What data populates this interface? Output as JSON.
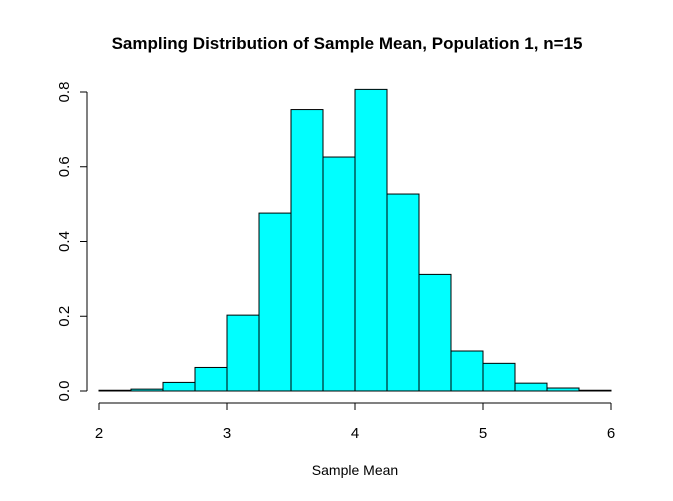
{
  "chart_data": {
    "type": "bar",
    "title": "Sampling Distribution of Sample Mean, Population 1, n=15",
    "xlabel": "Sample Mean",
    "ylabel": "",
    "xlim": [
      2,
      6
    ],
    "ylim": [
      0,
      0.8
    ],
    "bin_width": 0.25,
    "bins": [
      {
        "start": 2.0,
        "end": 2.25,
        "value": 0.002
      },
      {
        "start": 2.25,
        "end": 2.5,
        "value": 0.005
      },
      {
        "start": 2.5,
        "end": 2.75,
        "value": 0.023
      },
      {
        "start": 2.75,
        "end": 3.0,
        "value": 0.063
      },
      {
        "start": 3.0,
        "end": 3.25,
        "value": 0.203
      },
      {
        "start": 3.25,
        "end": 3.5,
        "value": 0.476
      },
      {
        "start": 3.5,
        "end": 3.75,
        "value": 0.753
      },
      {
        "start": 3.75,
        "end": 4.0,
        "value": 0.626
      },
      {
        "start": 4.0,
        "end": 4.25,
        "value": 0.807
      },
      {
        "start": 4.25,
        "end": 4.5,
        "value": 0.527
      },
      {
        "start": 4.5,
        "end": 4.75,
        "value": 0.312
      },
      {
        "start": 4.75,
        "end": 5.0,
        "value": 0.107
      },
      {
        "start": 5.0,
        "end": 5.25,
        "value": 0.074
      },
      {
        "start": 5.25,
        "end": 5.5,
        "value": 0.021
      },
      {
        "start": 5.5,
        "end": 5.75,
        "value": 0.008
      },
      {
        "start": 5.75,
        "end": 6.0,
        "value": 0.002
      }
    ],
    "x_ticks": [
      2,
      3,
      4,
      5,
      6
    ],
    "x_tick_labels": [
      "2",
      "3",
      "4",
      "5",
      "6"
    ],
    "y_ticks": [
      0,
      0.2,
      0.4,
      0.6,
      0.8
    ],
    "y_tick_labels": [
      "0.0",
      "0.2",
      "0.4",
      "0.6",
      "0.8"
    ],
    "bar_color": "#00ffff",
    "grid": false
  }
}
